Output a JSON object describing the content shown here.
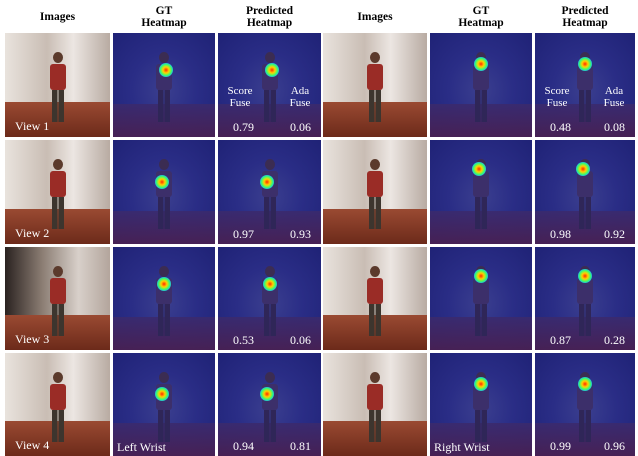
{
  "headers": [
    "Images",
    "GT\nHeatmap",
    "Predicted\nHeatmap",
    "Images",
    "GT\nHeatmap",
    "Predicted\nHeatmap"
  ],
  "method_labels": {
    "score": "Score\nFuse",
    "ada": "Ada\nFuse"
  },
  "views": [
    "View 1",
    "View 2",
    "View 3",
    "View 4"
  ],
  "joints": {
    "left": "Left Wrist",
    "right": "Right Wrist"
  },
  "scores": {
    "left": [
      [
        "0.79",
        "0.06"
      ],
      [
        "0.97",
        "0.93"
      ],
      [
        "0.53",
        "0.06"
      ],
      [
        "0.94",
        "0.81"
      ]
    ],
    "right": [
      [
        "0.48",
        "0.08"
      ],
      [
        "0.98",
        "0.92"
      ],
      [
        "0.87",
        "0.28"
      ],
      [
        "0.99",
        "0.96"
      ]
    ]
  }
}
